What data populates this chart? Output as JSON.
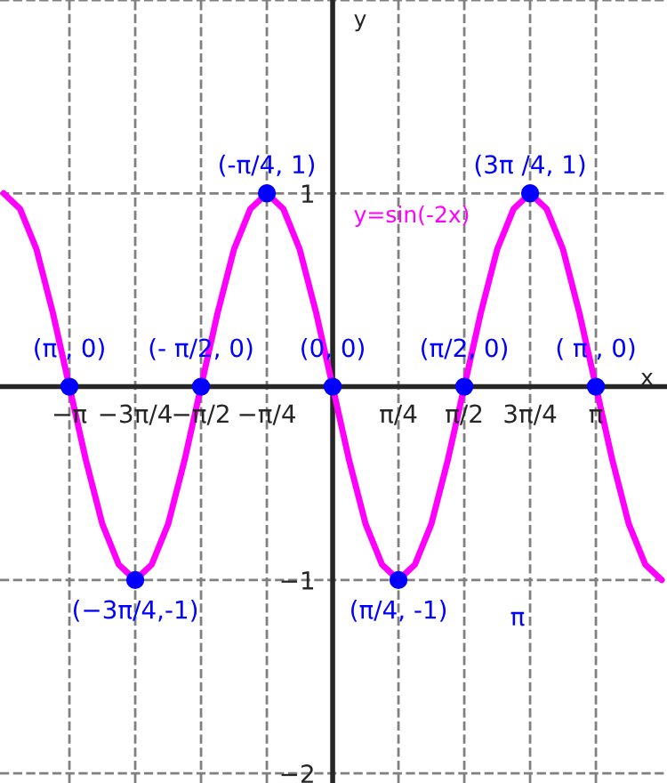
{
  "chart_data": {
    "type": "line",
    "xlabel": "x",
    "ylabel": "y",
    "xlim": [
      -3.97,
      3.99
    ],
    "ylim": [
      -2.05,
      2
    ],
    "xticks": [
      {
        "value": -3.1416,
        "label": "−π"
      },
      {
        "value": -2.3562,
        "label": "−3π/4"
      },
      {
        "value": -1.5708,
        "label": "−π/2"
      },
      {
        "value": -0.7854,
        "label": "−π/4"
      },
      {
        "value": 0.7854,
        "label": "π/4"
      },
      {
        "value": 1.5708,
        "label": "π/2"
      },
      {
        "value": 2.3562,
        "label": "3π/4"
      },
      {
        "value": 3.1416,
        "label": "π"
      }
    ],
    "yticks": [
      {
        "value": -2,
        "label": "−2"
      },
      {
        "value": -1,
        "label": "−1"
      },
      {
        "value": 1,
        "label": "1"
      },
      {
        "value": 2,
        "label": null
      }
    ],
    "grid": true,
    "series": [
      {
        "name": "y=sin(-2x)",
        "color": "#ff00ff",
        "marker": "none",
        "line_style": "solid",
        "x": [
          -3.927,
          -3.731,
          -3.534,
          -3.338,
          -3.142,
          -2.945,
          -2.749,
          -2.553,
          -2.356,
          -2.16,
          -1.963,
          -1.767,
          -1.571,
          -1.374,
          -1.178,
          -0.982,
          -0.785,
          -0.589,
          -0.393,
          -0.196,
          0,
          0.196,
          0.393,
          0.589,
          0.785,
          0.982,
          1.178,
          1.374,
          1.571,
          1.767,
          1.963,
          2.16,
          2.356,
          2.553,
          2.749,
          2.945,
          3.142,
          3.338,
          3.534,
          3.731,
          3.927
        ],
        "values": [
          1,
          0.92,
          0.71,
          0.38,
          0,
          -0.38,
          -0.71,
          -0.92,
          -1,
          -0.92,
          -0.71,
          -0.38,
          0,
          0.38,
          0.71,
          0.92,
          1,
          0.92,
          0.71,
          0.38,
          0,
          -0.38,
          -0.71,
          -0.92,
          -1,
          -0.92,
          -0.71,
          -0.38,
          0,
          0.38,
          0.71,
          0.92,
          1,
          0.92,
          0.71,
          0.38,
          0,
          -0.38,
          -0.71,
          -0.92,
          -1
        ]
      },
      {
        "type": "scatter",
        "color": "#0000ff",
        "marker": "circle",
        "x": [
          -3.1416,
          -2.3562,
          -1.5708,
          -0.7854,
          0,
          0.7854,
          1.5708,
          2.3562,
          3.1416
        ],
        "values": [
          0,
          -1,
          0,
          1,
          0,
          -1,
          0,
          1,
          0
        ]
      }
    ],
    "annotations": [
      {
        "text": "(π , 0)",
        "x": -3.1416,
        "y": 0
      },
      {
        "text": "(−3π/4,-1)",
        "x": -2.3562,
        "y": -1
      },
      {
        "text": "(- π/2, 0)",
        "x": -1.5708,
        "y": 0
      },
      {
        "text": "(-π/4, 1)",
        "x": -0.7854,
        "y": 1
      },
      {
        "text": "(0, 0)",
        "x": 0,
        "y": 0
      },
      {
        "text": "(π/4, -1)",
        "x": 0.7854,
        "y": -1
      },
      {
        "text": "(π/2, 0)",
        "x": 1.5708,
        "y": 0
      },
      {
        "text": "(3π /4, 1)",
        "x": 2.3562,
        "y": 1
      },
      {
        "text": "( π , 0)",
        "x": 3.1416,
        "y": 0
      },
      "π"
    ]
  }
}
